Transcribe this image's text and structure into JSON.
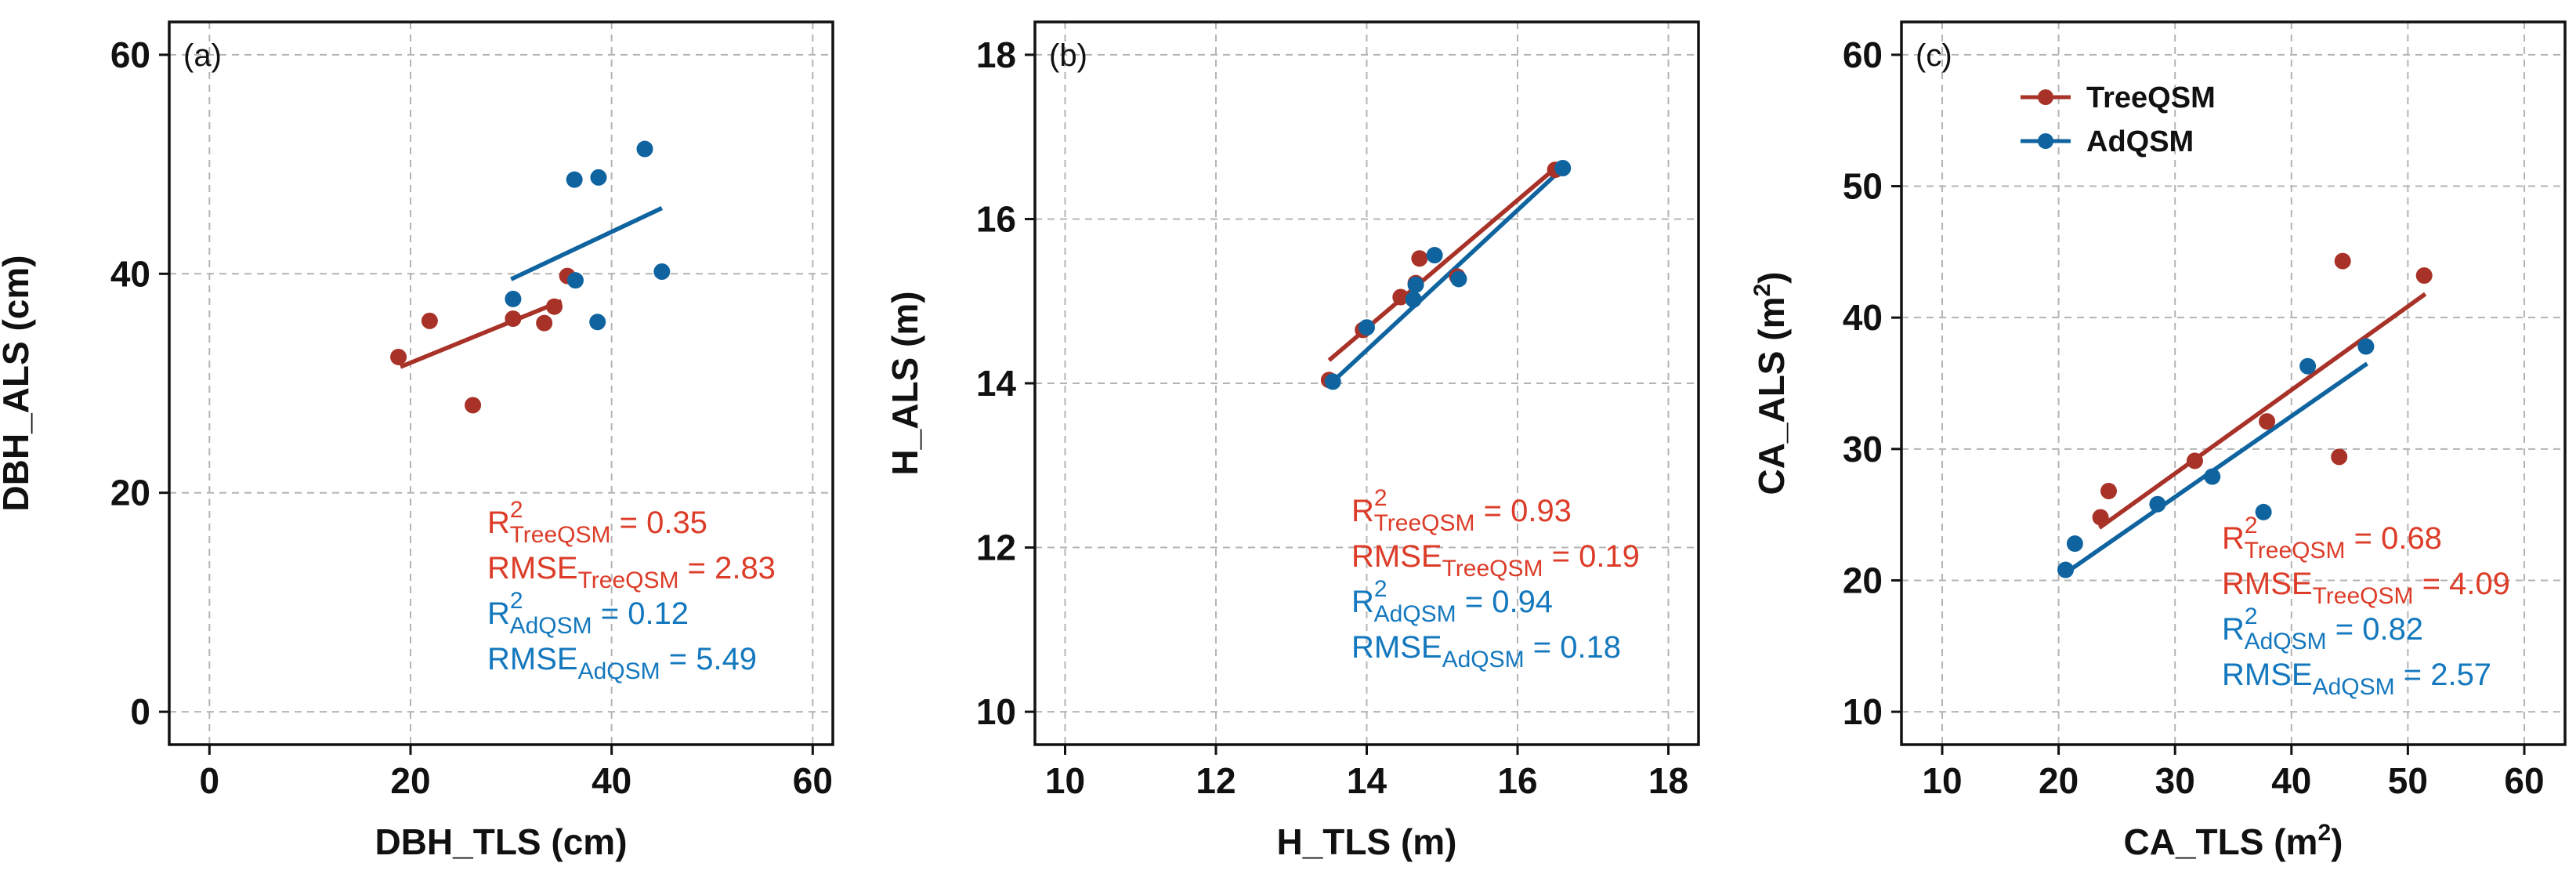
{
  "colors": {
    "treeqsm": "#a83228",
    "adqsm": "#0f64a0",
    "treeqsm_text": "#dc3c28",
    "adqsm_text": "#1478be"
  },
  "legend": {
    "items": [
      {
        "name": "TreeQSM",
        "series": 0
      },
      {
        "name": "AdQSM",
        "series": 1
      }
    ],
    "placement": "top-left (panel c)"
  },
  "chart_data": [
    {
      "type": "scatter",
      "panel_label": "(a)",
      "xlabel": "DBH_TLS (cm)",
      "ylabel": "DBH_ALS (cm)",
      "xlim": [
        -4,
        62
      ],
      "ylim": [
        -3,
        63
      ],
      "xticks": [
        0,
        20,
        40,
        60
      ],
      "yticks": [
        0,
        20,
        40,
        60
      ],
      "grid": true,
      "series": [
        {
          "name": "TreeQSM",
          "points": [
            [
              18.8,
              32.4
            ],
            [
              21.9,
              35.7
            ],
            [
              26.2,
              28.0
            ],
            [
              30.2,
              35.9
            ],
            [
              33.3,
              35.5
            ],
            [
              34.3,
              37.0
            ],
            [
              35.6,
              39.8
            ]
          ],
          "fit": {
            "x": [
              19.0,
              35.0
            ],
            "y": [
              31.5,
              37.5
            ]
          },
          "stats": {
            "r2": {
              "sub": "TreeQSM",
              "value": "0.35"
            },
            "rmse": {
              "sub": "TreeQSM",
              "value": "2.83"
            }
          }
        },
        {
          "name": "AdQSM",
          "points": [
            [
              30.2,
              37.7
            ],
            [
              36.3,
              48.6
            ],
            [
              36.4,
              39.4
            ],
            [
              38.6,
              35.6
            ],
            [
              38.7,
              48.8
            ],
            [
              43.3,
              51.4
            ],
            [
              45.0,
              40.2
            ]
          ],
          "fit": {
            "x": [
              30.0,
              45.0
            ],
            "y": [
              39.5,
              46.0
            ]
          },
          "stats": {
            "r2": {
              "sub": "AdQSM",
              "value": "0.12"
            },
            "rmse": {
              "sub": "AdQSM",
              "value": "5.49"
            }
          }
        }
      ]
    },
    {
      "type": "scatter",
      "panel_label": "(b)",
      "xlabel": "H_TLS (m)",
      "ylabel": "H_ALS (m)",
      "xlim": [
        9.6,
        18.4
      ],
      "ylim": [
        9.6,
        18.4
      ],
      "xticks": [
        10,
        12,
        14,
        16,
        18
      ],
      "yticks": [
        10,
        12,
        14,
        16,
        18
      ],
      "grid": true,
      "series": [
        {
          "name": "TreeQSM",
          "points": [
            [
              13.5,
              14.04
            ],
            [
              13.95,
              14.65
            ],
            [
              14.45,
              15.05
            ],
            [
              14.65,
              15.22
            ],
            [
              14.7,
              15.52
            ],
            [
              15.2,
              15.3
            ],
            [
              16.5,
              16.6
            ]
          ],
          "fit": {
            "x": [
              13.5,
              16.5
            ],
            "y": [
              14.28,
              16.62
            ]
          },
          "stats": {
            "r2": {
              "sub": "TreeQSM",
              "value": "0.93"
            },
            "rmse": {
              "sub": "TreeQSM",
              "value": "0.19"
            }
          }
        },
        {
          "name": "AdQSM",
          "points": [
            [
              13.55,
              14.02
            ],
            [
              14.0,
              14.68
            ],
            [
              14.62,
              15.02
            ],
            [
              14.65,
              15.2
            ],
            [
              14.9,
              15.56
            ],
            [
              15.22,
              15.27
            ],
            [
              16.6,
              16.62
            ]
          ],
          "fit": {
            "x": [
              13.55,
              16.6
            ],
            "y": [
              14.02,
              16.62
            ]
          },
          "stats": {
            "r2": {
              "sub": "AdQSM",
              "value": "0.94"
            },
            "rmse": {
              "sub": "AdQSM",
              "value": "0.18"
            }
          }
        }
      ]
    },
    {
      "type": "scatter",
      "panel_label": "(c)",
      "xlabel": "CA_TLS (m",
      "ylabel": "CA_ALS (m",
      "xlim": [
        6.5,
        63.5
      ],
      "ylim": [
        7.5,
        62.5
      ],
      "xticks": [
        10,
        20,
        30,
        40,
        50,
        60
      ],
      "yticks": [
        10,
        20,
        30,
        40,
        50,
        60
      ],
      "grid": true,
      "series": [
        {
          "name": "TreeQSM",
          "points": [
            [
              23.6,
              24.8
            ],
            [
              24.3,
              26.8
            ],
            [
              31.7,
              29.1
            ],
            [
              37.9,
              32.1
            ],
            [
              44.1,
              29.4
            ],
            [
              44.4,
              44.3
            ],
            [
              51.4,
              43.2
            ]
          ],
          "fit": {
            "x": [
              23.5,
              51.5
            ],
            "y": [
              24.0,
              41.8
            ]
          },
          "stats": {
            "r2": {
              "sub": "TreeQSM",
              "value": "0.68"
            },
            "rmse": {
              "sub": "TreeQSM",
              "value": "4.09"
            }
          }
        },
        {
          "name": "AdQSM",
          "points": [
            [
              20.6,
              20.8
            ],
            [
              21.4,
              22.8
            ],
            [
              28.5,
              25.8
            ],
            [
              33.2,
              27.9
            ],
            [
              37.6,
              25.2
            ],
            [
              41.4,
              36.3
            ],
            [
              46.4,
              37.8
            ]
          ],
          "fit": {
            "x": [
              20.5,
              46.5
            ],
            "y": [
              20.5,
              36.5
            ]
          },
          "stats": {
            "r2": {
              "sub": "AdQSM",
              "value": "0.82"
            },
            "rmse": {
              "sub": "AdQSM",
              "value": "2.57"
            }
          }
        }
      ]
    }
  ],
  "labels": {
    "r2_prefix": "R",
    "r2_power": "2",
    "rmse_prefix": "RMSE",
    "equals": " = ",
    "unit_power": "2",
    "unit_close": ")"
  }
}
